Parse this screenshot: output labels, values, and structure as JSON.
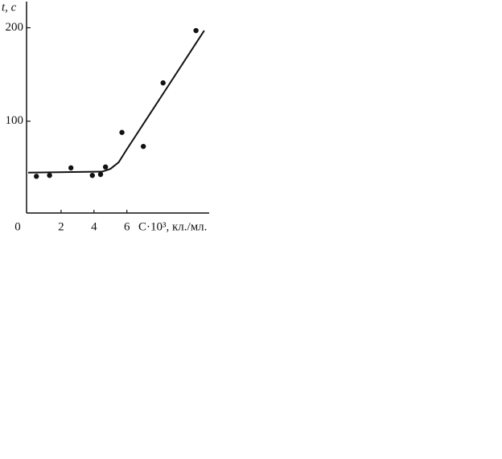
{
  "chart_data": {
    "type": "scatter",
    "ylabel": "t, с",
    "xlabel": "C·10³, кл./мл.",
    "xlim": [
      0,
      11
    ],
    "xticks": [
      0,
      2,
      4,
      6
    ],
    "ylim": [
      0,
      228
    ],
    "yticks": [
      100,
      200
    ],
    "series": [
      {
        "type": "scatter",
        "color": "#111111",
        "x": [
          0.5,
          1.3,
          2.6,
          3.9,
          4.4,
          4.7,
          5.7,
          7.0,
          8.2,
          10.2
        ],
        "values": [
          41,
          42,
          50,
          42,
          43,
          51,
          88,
          73,
          141,
          197
        ]
      },
      {
        "type": "line",
        "color": "#111111",
        "x": [
          0,
          4.5,
          5,
          5.5,
          6,
          8,
          10.7
        ],
        "values": [
          45,
          46,
          49,
          56,
          70,
          124,
          197
        ]
      }
    ]
  }
}
